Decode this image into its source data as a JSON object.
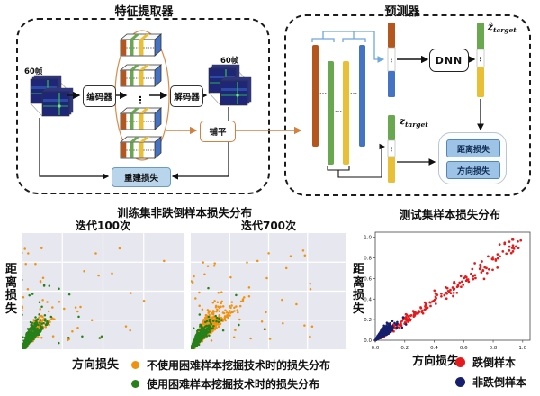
{
  "extractor": {
    "title": "特征提取器",
    "input_frames": "60帧",
    "output_frames": "60帧",
    "encoder": "编码器",
    "decoder": "解码器",
    "flatten": "铺平",
    "recon_loss": "重建损失"
  },
  "predictor": {
    "title": "预测器",
    "dnn": "DNN",
    "z": "z",
    "z_hat": "ẑ",
    "target_sub": "target",
    "distance_loss": "距离损失",
    "direction_loss": "方向损失"
  },
  "misc": {
    "dots_v": "⋮",
    "dots_h": "…"
  },
  "palette": {
    "flow_orange": "#d4803f",
    "bracket_blue": "#6fa8dc",
    "bar_orange": "#b5561d",
    "bar_green": "#6aa84f",
    "bar_yellow": "#e9bf35",
    "bar_blue": "#4472c4",
    "loss_box_fill": "#9dc3e6",
    "recon_fill": "#b9d5ec",
    "plot_bg": "#e7e7ef"
  },
  "training_section": {
    "title": "训练集非跌倒样本损失分布",
    "subplot1_title": "迭代100次",
    "subplot2_title": "迭代700次",
    "ylabel": "距离损失",
    "xlabel": "方向损失",
    "legend": [
      {
        "color": "#f0920e",
        "label": "不使用困难样本挖掘技术时的损失分布"
      },
      {
        "color": "#27801a",
        "label": "使用困难样本挖掘技术时的损失分布"
      }
    ]
  },
  "test_section": {
    "title": "测试集样本损失分布",
    "ylabel": "距离损失",
    "xlabel": "方向损失",
    "legend": [
      {
        "color": "#e41a1c",
        "label": "跌倒样本"
      },
      {
        "color": "#151f6d",
        "label": "非跌倒样本"
      }
    ]
  },
  "chart_data": [
    {
      "type": "scatter",
      "title": "迭代100次",
      "xlabel": "方向损失",
      "ylabel": "距离损失",
      "xlim": [
        0,
        1
      ],
      "ylim": [
        0,
        1
      ],
      "grid": true,
      "background": "#e7e7ef",
      "note": "dense wedge of points at lower-left corner; orange spread slightly wider than green, sparse outliers across plot",
      "series": [
        {
          "name": "不使用困难样本挖掘技术时的损失分布",
          "color": "#f0920e",
          "size": 1.25,
          "gen": {
            "kind": "cone",
            "n": 420,
            "scale": 0.125,
            "xmin": 0.25,
            "xrand": 0.5,
            "seed": 7
          },
          "outliers": {
            "n": 42,
            "xmax": 0.9,
            "ymax": 0.82,
            "seed": 8
          }
        },
        {
          "name": "使用困难样本挖掘技术时的损失分布",
          "color": "#27801a",
          "size": 1.25,
          "gen": {
            "kind": "cone",
            "n": 850,
            "scale": 0.095,
            "xmin": 0.22,
            "xrand": 0.5,
            "seed": 9
          },
          "outliers": {
            "n": 26,
            "xmax": 0.55,
            "ymax": 0.55,
            "seed": 10
          }
        }
      ]
    },
    {
      "type": "scatter",
      "title": "迭代700次",
      "xlabel": "方向损失",
      "ylabel": "距离损失",
      "xlim": [
        0,
        1
      ],
      "ylim": [
        0,
        1
      ],
      "grid": true,
      "background": "#e7e7ef",
      "note": "orange wedge clearly wider/taller than tight green wedge after 700 iterations",
      "series": [
        {
          "name": "不使用困难样本挖掘技术时的损失分布",
          "color": "#f0920e",
          "size": 1.25,
          "gen": {
            "kind": "cone",
            "n": 850,
            "scale": 0.16,
            "xmin": 0.3,
            "xrand": 0.55,
            "seed": 17
          },
          "outliers": {
            "n": 48,
            "xmax": 0.85,
            "ymax": 0.8,
            "seed": 18
          }
        },
        {
          "name": "使用困难样本挖掘技术时的损失分布",
          "color": "#27801a",
          "size": 1.25,
          "gen": {
            "kind": "cone",
            "n": 800,
            "scale": 0.085,
            "xmin": 0.25,
            "xrand": 0.5,
            "seed": 19
          },
          "outliers": {
            "n": 10,
            "xmax": 0.5,
            "ymax": 0.5,
            "seed": 20
          }
        }
      ]
    },
    {
      "type": "scatter",
      "title": "测试集样本损失分布",
      "xlabel": "方向损失",
      "ylabel": "距离损失",
      "xlim": [
        0,
        1.05
      ],
      "ylim": [
        0,
        1.05
      ],
      "grid": false,
      "axes": true,
      "background": "#ffffff",
      "xticks": [
        "0.0",
        "0.2",
        "0.4",
        "0.6",
        "0.8",
        "1.0"
      ],
      "yticks": [
        "0.0",
        "0.2",
        "0.4",
        "0.6",
        "0.8",
        "1.0"
      ],
      "note": "navy non-fall samples clustered near origin, red fall samples spread along the y=x diagonal up to ~1.0",
      "series": [
        {
          "name": "跌倒样本",
          "color": "#e41a1c",
          "size": 1.35,
          "gen": {
            "kind": "diagonal",
            "n": 210,
            "x0": 0.03,
            "x1": 0.97,
            "noise": 0.05,
            "seed": 31
          }
        },
        {
          "name": "非跌倒样本",
          "color": "#151f6d",
          "size": 1.3,
          "gen": {
            "kind": "origin",
            "n": 620,
            "scale": 0.05,
            "seed": 32
          }
        }
      ]
    }
  ]
}
